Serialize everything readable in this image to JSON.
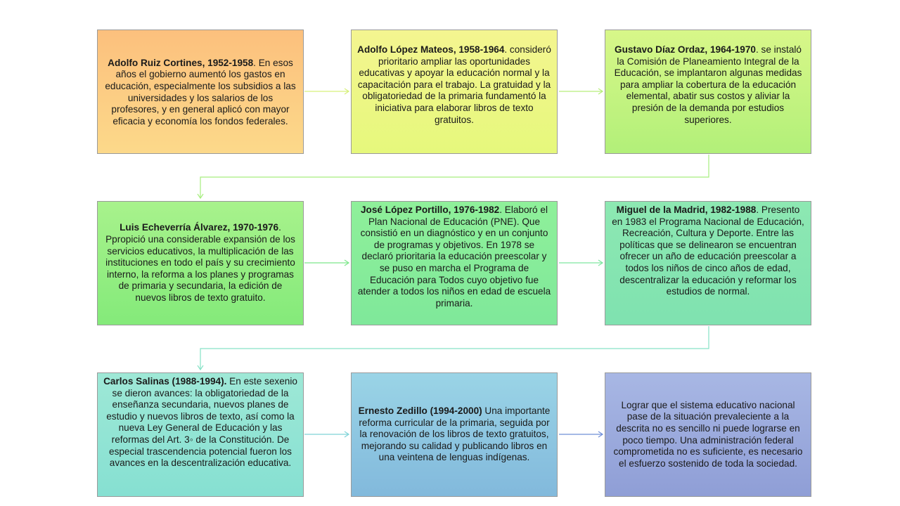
{
  "boxes": [
    {
      "name": "Adolfo Ruiz Cortines, 1952-1958",
      "sep": ".",
      "body": " En esos años el gobierno aumentó los gastos en educación, especialmente los subsidios a las universidades y los salarios de los profesores, y en general aplicó con mayor eficacia y economía los fondos federales.",
      "colors": [
        "#fcc07d",
        "#fcd98a"
      ]
    },
    {
      "name": "Adolfo López Mateos, 1958-1964",
      "sep": ".",
      "body": " consideró prioritario ampliar las oportunidades educativas y apoyar la educación normal y la capacitación para el trabajo. La gratuidad y la obligatoriedad de la primaria fundamentó la iniciativa para elaborar libros de texto gratuitos.",
      "colors": [
        "#f4f590",
        "#e6f87c"
      ]
    },
    {
      "name": "Gustavo Díaz Ordaz, 1964-1970",
      "sep": ".",
      "body": " se instaló la Comisión de Planeamiento Integral de la Educación, se implantaron algunas medidas para ampliar la cobertura de la educación elemental, abatir sus costos y aliviar la presión de la demanda por estudios superiores.",
      "colors": [
        "#d8f789",
        "#b2f079"
      ]
    },
    {
      "name": "Luis Echeverría Álvarez, 1970-1976",
      "sep": ".",
      "body": " Ppropició una considerable expansión de los servicios educativos, la multiplicación de las instituciones en todo el país y su crecimiento interno, la reforma a los planes y programas de primaria y secundaria, la edición de nuevos libros de texto gratuito.",
      "colors": [
        "#a8f28c",
        "#84ea7a"
      ]
    },
    {
      "name": "José López Portillo, 1976-1982",
      "sep": ".",
      "body": " Elaboró el Plan Nacional de Educación (PNE). Que  consistió en un diagnóstico y en un conjunto de programas y objetivos. En 1978 se declaró prioritaria la educación preescolar y se puso en marcha el Programa de Educación para Todos cuyo objetivo fue atender a todos los niños en edad de escuela primaria.",
      "colors": [
        "#8ff09a",
        "#7fe89a"
      ]
    },
    {
      "name": "Miguel de la Madrid, 1982-1988",
      "sep": ".",
      "body": " Presento en 1983 el Programa Nacional de Educación, Recreación, Cultura y Deporte. Entre las políticas que se delinearon se encuentran ofrecer un año de educación preescolar a todos los niños de cinco años de edad, descentralizar la educación y reformar los estudios de normal.",
      "colors": [
        "#8de8b2",
        "#7fe2b0"
      ]
    },
    {
      "name": "Carlos Salinas (1988-1994).",
      "sep": "",
      "body": " En este sexenio  se dieron avances: la obligatoriedad de la enseñanza secundaria, nuevos planes de estudio y nuevos libros de texto, así como la nueva Ley General de Educación y las reformas del Art. 3◦ de la Constitución. De especial trascendencia potencial fueron los avances en la descentralización educativa.",
      "colors": [
        "#9ee8d6",
        "#86e0d2"
      ]
    },
    {
      "name": "Ernesto Zedillo (1994-2000)",
      "sep": "",
      "body": "  Una importante reforma curricular de la primaria, seguida por la renovación de los libros de texto gratuitos, mejorando su calidad y publicando libros en una veintena de lenguas indígenas.",
      "colors": [
        "#9ad4e6",
        "#82b9dc"
      ]
    },
    {
      "name": "",
      "sep": "",
      "body": "Lograr que el sistema educativo nacional pase de la situación prevaleciente a la descrita no es sencillo ni puede lograrse en poco tiempo. Una administración federal comprometida no es suficiente, es necesario el esfuerzo sostenido de toda la sociedad.",
      "colors": [
        "#a8b7e4",
        "#8f9ed6"
      ]
    }
  ],
  "arrow_colors": [
    "#d6f07a",
    "#b6ee7a",
    "#a6ee7e",
    "#7ee78c",
    "#7fe6a0",
    "#86e2c6",
    "#7fd4d8",
    "#8fc1e0",
    "#6f8fd8"
  ]
}
